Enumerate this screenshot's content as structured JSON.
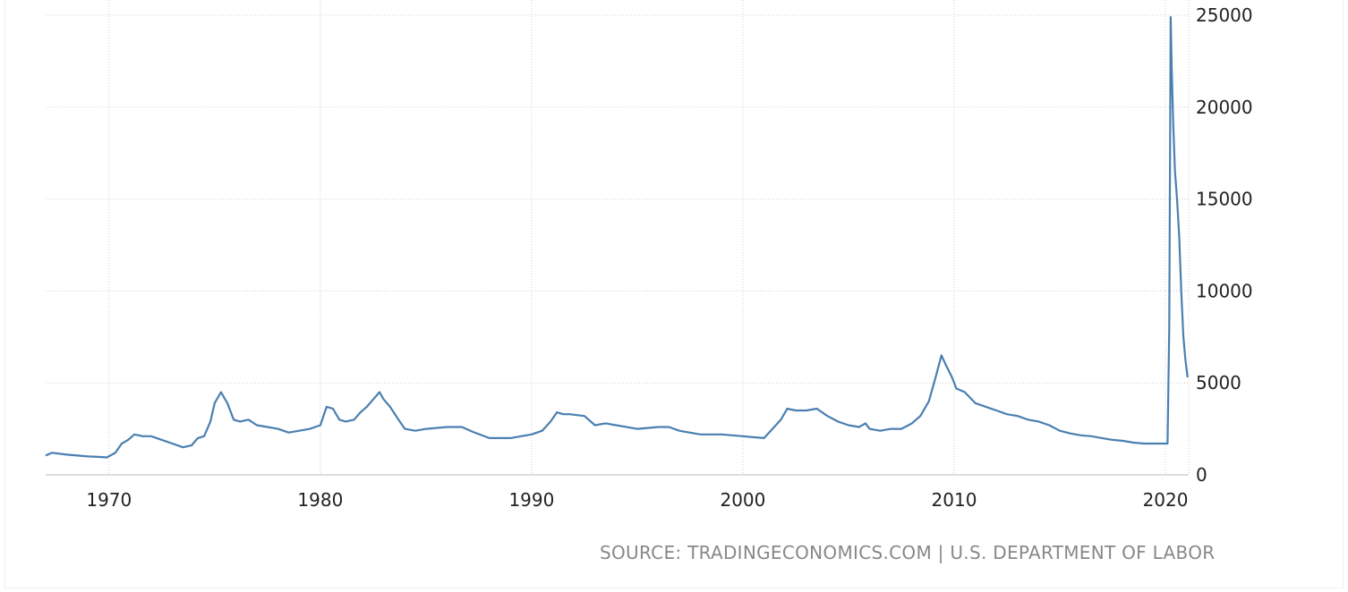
{
  "source_text": "SOURCE: TRADINGECONOMICS.COM | U.S. DEPARTMENT OF LABOR",
  "chart_data": {
    "type": "line",
    "x_range": [
      1967.0,
      2021.1
    ],
    "ylim": [
      0,
      25000
    ],
    "y_axis_position": "right",
    "grid": "dotted",
    "x_ticks": [
      1970,
      1980,
      1990,
      2000,
      2010,
      2020
    ],
    "x_tick_labels": [
      "1970",
      "1980",
      "1990",
      "2000",
      "2010",
      "2020"
    ],
    "y_ticks": [
      0,
      5000,
      10000,
      15000,
      20000,
      25000
    ],
    "y_tick_labels": [
      "0",
      "5000",
      "10000",
      "15000",
      "20000",
      "25000"
    ],
    "line_color": "#4a7fb0",
    "series": [
      {
        "x": [
          1967.0,
          1967.3,
          1968.0,
          1968.5,
          1969.0,
          1969.5,
          1969.9,
          1970.3,
          1970.6,
          1970.9,
          1971.2,
          1971.6,
          1972.0,
          1972.5,
          1973.0,
          1973.5,
          1973.9,
          1974.2,
          1974.5,
          1974.8,
          1975.0,
          1975.3,
          1975.6,
          1975.9,
          1976.2,
          1976.6,
          1977.0,
          1977.5,
          1978.0,
          1978.5,
          1979.0,
          1979.5,
          1980.0,
          1980.3,
          1980.6,
          1980.9,
          1981.2,
          1981.6,
          1981.9,
          1982.2,
          1982.5,
          1982.8,
          1983.0,
          1983.3,
          1983.7,
          1984.0,
          1984.5,
          1985.0,
          1986.0,
          1986.7,
          1987.3,
          1988.0,
          1988.5,
          1989.0,
          1989.5,
          1990.0,
          1990.5,
          1990.9,
          1991.2,
          1991.5,
          1991.8,
          1992.5,
          1993.0,
          1993.5,
          1994.0,
          1995.0,
          1996.0,
          1996.5,
          1997.0,
          1998.0,
          1999.0,
          2000.0,
          2000.5,
          2001.0,
          2001.4,
          2001.8,
          2002.1,
          2002.5,
          2003.0,
          2003.5,
          2004.0,
          2004.5,
          2005.0,
          2005.5,
          2005.8,
          2006.0,
          2006.5,
          2007.0,
          2007.5,
          2008.0,
          2008.4,
          2008.8,
          2009.1,
          2009.4,
          2009.6,
          2009.9,
          2010.1,
          2010.5,
          2011.0,
          2011.5,
          2012.0,
          2012.5,
          2013.0,
          2013.5,
          2014.0,
          2014.5,
          2015.0,
          2015.5,
          2016.0,
          2016.5,
          2017.0,
          2017.5,
          2018.0,
          2018.5,
          2019.0,
          2019.5,
          2019.9,
          2020.1,
          2020.18,
          2020.25,
          2020.3,
          2020.37,
          2020.45,
          2020.55,
          2020.65,
          2020.75,
          2020.85,
          2020.95,
          2021.05
        ],
        "y": [
          1050,
          1200,
          1100,
          1050,
          1000,
          980,
          950,
          1200,
          1700,
          1900,
          2200,
          2100,
          2100,
          1900,
          1700,
          1500,
          1600,
          2000,
          2100,
          2900,
          3900,
          4500,
          3900,
          3000,
          2900,
          3000,
          2700,
          2600,
          2500,
          2300,
          2400,
          2500,
          2700,
          3700,
          3600,
          3000,
          2900,
          3000,
          3400,
          3700,
          4100,
          4500,
          4100,
          3700,
          3000,
          2500,
          2400,
          2500,
          2600,
          2600,
          2300,
          2000,
          2000,
          2000,
          2100,
          2200,
          2400,
          2900,
          3400,
          3300,
          3300,
          3200,
          2700,
          2800,
          2700,
          2500,
          2600,
          2600,
          2400,
          2200,
          2200,
          2100,
          2050,
          2000,
          2500,
          3000,
          3600,
          3500,
          3500,
          3600,
          3200,
          2900,
          2700,
          2600,
          2800,
          2500,
          2400,
          2500,
          2500,
          2800,
          3200,
          4000,
          5200,
          6500,
          6000,
          5300,
          4700,
          4500,
          3900,
          3700,
          3500,
          3300,
          3200,
          3000,
          2900,
          2700,
          2400,
          2250,
          2150,
          2100,
          2000,
          1900,
          1850,
          1750,
          1700,
          1700,
          1700,
          1700,
          8000,
          24900,
          22000,
          19000,
          16500,
          15000,
          13000,
          10000,
          7500,
          6200,
          5300
        ]
      }
    ]
  }
}
